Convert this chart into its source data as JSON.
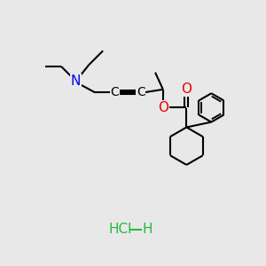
{
  "background_color": "#e8e8e8",
  "atom_colors": {
    "N": "#0000ee",
    "O": "#ee0000",
    "C": "#000000"
  },
  "bond_color": "#000000",
  "line_width": 1.5,
  "hcl_color": "#22bb44"
}
